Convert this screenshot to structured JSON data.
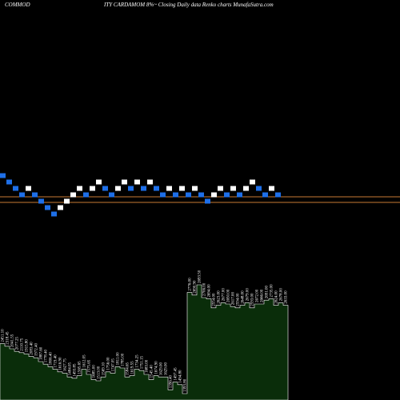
{
  "title_left": "COMMOD",
  "title_right": "ITY CARDAMOM 8%~  Closing Daily data  Renko  charts MunafaSutra.com",
  "chart_data": {
    "type": "renko",
    "title": "COMMODITY CARDAMOM 8%~ Closing Daily data Renko charts MunafaSutra.com",
    "colors": {
      "up_brick": "#ffffff",
      "down_brick": "#1e6fe8",
      "price_line": "#c87a34",
      "volume_fill": "#0a2d0a",
      "volume_stroke": "#ffffff",
      "volume_label": "#ffffff"
    },
    "price_lines": [
      246,
      253
    ],
    "bricks": [
      {
        "x": 1,
        "y": 220,
        "dir": "down"
      },
      {
        "x": 2,
        "y": 228,
        "dir": "down"
      },
      {
        "x": 3,
        "y": 236,
        "dir": "down"
      },
      {
        "x": 4,
        "y": 244,
        "dir": "down"
      },
      {
        "x": 5,
        "y": 236,
        "dir": "up"
      },
      {
        "x": 6,
        "y": 244,
        "dir": "down"
      },
      {
        "x": 7,
        "y": 252,
        "dir": "down"
      },
      {
        "x": 8,
        "y": 260,
        "dir": "down"
      },
      {
        "x": 9,
        "y": 268,
        "dir": "down"
      },
      {
        "x": 10,
        "y": 260,
        "dir": "up"
      },
      {
        "x": 11,
        "y": 252,
        "dir": "up"
      },
      {
        "x": 12,
        "y": 244,
        "dir": "up"
      },
      {
        "x": 13,
        "y": 236,
        "dir": "up"
      },
      {
        "x": 14,
        "y": 244,
        "dir": "down"
      },
      {
        "x": 15,
        "y": 236,
        "dir": "up"
      },
      {
        "x": 16,
        "y": 228,
        "dir": "up"
      },
      {
        "x": 17,
        "y": 236,
        "dir": "down"
      },
      {
        "x": 18,
        "y": 244,
        "dir": "down"
      },
      {
        "x": 19,
        "y": 236,
        "dir": "up"
      },
      {
        "x": 20,
        "y": 228,
        "dir": "up"
      },
      {
        "x": 21,
        "y": 236,
        "dir": "down"
      },
      {
        "x": 22,
        "y": 228,
        "dir": "up"
      },
      {
        "x": 23,
        "y": 236,
        "dir": "down"
      },
      {
        "x": 24,
        "y": 228,
        "dir": "up"
      },
      {
        "x": 25,
        "y": 236,
        "dir": "down"
      },
      {
        "x": 26,
        "y": 244,
        "dir": "down"
      },
      {
        "x": 27,
        "y": 236,
        "dir": "up"
      },
      {
        "x": 28,
        "y": 244,
        "dir": "down"
      },
      {
        "x": 29,
        "y": 236,
        "dir": "up"
      },
      {
        "x": 30,
        "y": 244,
        "dir": "down"
      },
      {
        "x": 31,
        "y": 236,
        "dir": "up"
      },
      {
        "x": 32,
        "y": 244,
        "dir": "down"
      },
      {
        "x": 33,
        "y": 252,
        "dir": "down"
      },
      {
        "x": 34,
        "y": 244,
        "dir": "up"
      },
      {
        "x": 35,
        "y": 236,
        "dir": "up"
      },
      {
        "x": 36,
        "y": 244,
        "dir": "down"
      },
      {
        "x": 37,
        "y": 236,
        "dir": "up"
      },
      {
        "x": 38,
        "y": 244,
        "dir": "down"
      },
      {
        "x": 39,
        "y": 236,
        "dir": "up"
      },
      {
        "x": 40,
        "y": 228,
        "dir": "up"
      },
      {
        "x": 41,
        "y": 236,
        "dir": "down"
      },
      {
        "x": 42,
        "y": 244,
        "dir": "down"
      },
      {
        "x": 43,
        "y": 236,
        "dir": "up"
      },
      {
        "x": 44,
        "y": 244,
        "dir": "down"
      }
    ],
    "volume_bars": [
      {
        "label": "2451.10",
        "level": 0.44
      },
      {
        "label": "2318.45",
        "level": 0.42
      },
      {
        "label": "2041.55",
        "level": 0.4
      },
      {
        "label": "2077.25",
        "level": 0.38
      },
      {
        "label": "2110.75",
        "level": 0.37
      },
      {
        "label": "1915.80",
        "level": 0.36
      },
      {
        "label": "2083.40",
        "level": 0.34
      },
      {
        "label": "1972.40",
        "level": 0.33
      },
      {
        "label": "1887.60",
        "level": 0.3
      },
      {
        "label": "1778.40",
        "level": 0.28
      },
      {
        "label": "1806.40",
        "level": 0.26
      },
      {
        "label": "1719.40",
        "level": 0.24
      },
      {
        "label": "1616.90",
        "level": 0.22
      },
      {
        "label": "1627.75",
        "level": 0.21
      },
      {
        "label": "1484.05",
        "level": 0.18
      },
      {
        "label": "1493.85",
        "level": 0.17
      },
      {
        "label": "1565.65",
        "level": 0.19
      },
      {
        "label": "1612.05",
        "level": 0.24
      },
      {
        "label": "1575.65",
        "level": 0.2
      },
      {
        "label": "1685.00",
        "level": 0.16
      },
      {
        "label": "1513.00",
        "level": 0.15
      },
      {
        "label": "1569.10",
        "level": 0.18
      },
      {
        "label": "1756.00",
        "level": 0.22
      },
      {
        "label": "1747.05",
        "level": 0.21
      },
      {
        "label": "1811.00",
        "level": 0.26
      },
      {
        "label": "1785.00",
        "level": 0.25
      },
      {
        "label": "1584.65",
        "level": 0.18
      },
      {
        "label": "1619.55",
        "level": 0.19
      },
      {
        "label": "1734.25",
        "level": 0.24
      },
      {
        "label": "1751.15",
        "level": 0.23
      },
      {
        "label": "1683.00",
        "level": 0.2
      },
      {
        "label": "1545.40",
        "level": 0.16
      },
      {
        "label": "1674.90",
        "level": 0.19
      },
      {
        "label": "1629.00",
        "level": 0.18
      },
      {
        "label": "1629.00",
        "level": 0.18
      },
      {
        "label": "1396.40",
        "level": 0.08
      },
      {
        "label": "1497.45",
        "level": 0.14
      },
      {
        "label": "1494.80",
        "level": 0.12
      },
      {
        "label": "1393.80",
        "level": 0.05
      },
      {
        "label": "2776.00",
        "level": 0.84
      },
      {
        "label": "2690.90",
        "level": 0.82
      },
      {
        "label": "2693.50",
        "level": 0.9
      },
      {
        "label": "2706.00",
        "level": 0.8
      },
      {
        "label": "2694.00",
        "level": 0.79
      },
      {
        "label": "2554.00",
        "level": 0.72
      },
      {
        "label": "2623.00",
        "level": 0.74
      },
      {
        "label": "2677.00",
        "level": 0.76
      },
      {
        "label": "2650.00",
        "level": 0.75
      },
      {
        "label": "2617.00",
        "level": 0.73
      },
      {
        "label": "2594.00",
        "level": 0.72
      },
      {
        "label": "2648.00",
        "level": 0.74
      },
      {
        "label": "2679.00",
        "level": 0.76
      },
      {
        "label": "2593.00",
        "level": 0.72
      },
      {
        "label": "2672.00",
        "level": 0.75
      },
      {
        "label": "2666.00",
        "level": 0.75
      },
      {
        "label": "2691.00",
        "level": 0.78
      },
      {
        "label": "2735.00",
        "level": 0.79
      },
      {
        "label": "2624.00",
        "level": 0.74
      },
      {
        "label": "2678.00",
        "level": 0.76
      },
      {
        "label": "2633.00",
        "level": 0.74
      }
    ]
  }
}
